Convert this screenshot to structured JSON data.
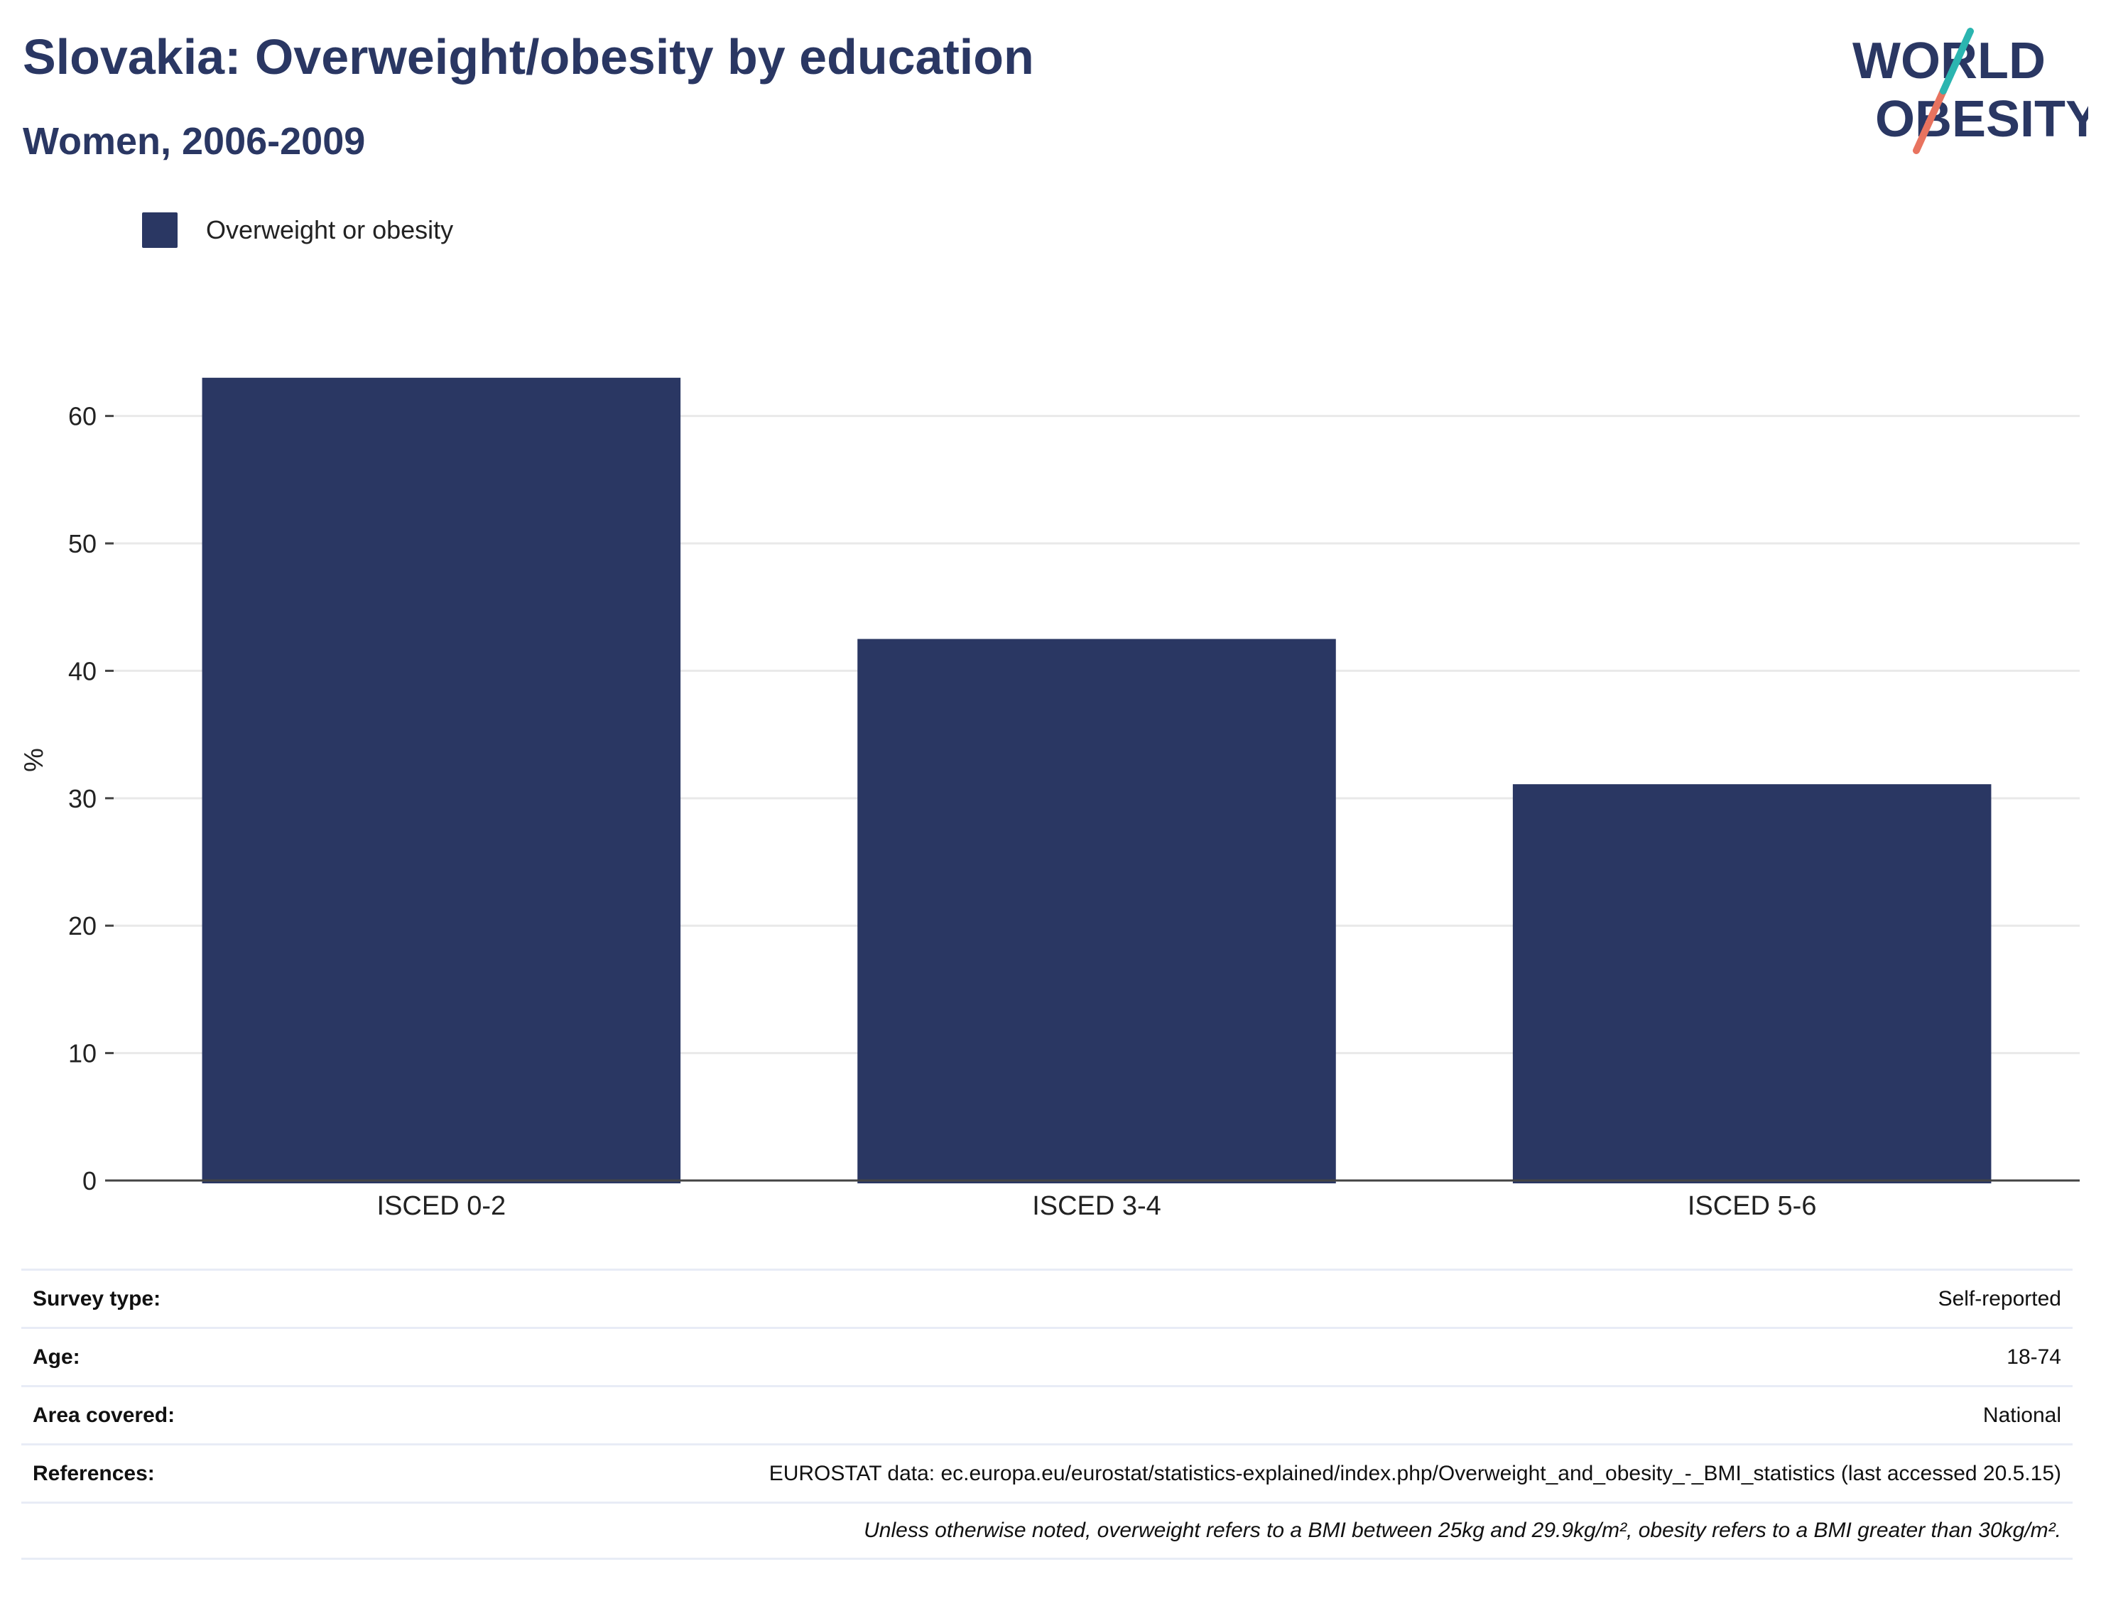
{
  "header": {
    "title": "Slovakia: Overweight/obesity by education",
    "subtitle": "Women, 2006-2009"
  },
  "logo": {
    "line1": "WORLD",
    "line2": "OBESITY",
    "colors": {
      "text": "#2a3763",
      "slash_top": "#2bb5b0",
      "slash_bottom": "#e8735f"
    }
  },
  "legend": {
    "items": [
      {
        "label": "Overweight or obesity",
        "color": "#2a3763"
      }
    ]
  },
  "chart_data": {
    "type": "bar",
    "categories": [
      "ISCED 0-2",
      "ISCED 3-4",
      "ISCED 5-6"
    ],
    "series": [
      {
        "name": "Overweight or obesity",
        "values": [
          63.0,
          42.5,
          31.1
        ],
        "color": "#2a3763"
      }
    ],
    "ylabel": "%",
    "xlabel": "",
    "ylim": [
      0,
      66
    ],
    "yticks": [
      0,
      10,
      20,
      30,
      40,
      50,
      60
    ],
    "grid": true,
    "legend_position": "top-left"
  },
  "info": {
    "rows": [
      {
        "label": "Survey type:",
        "value": "Self-reported"
      },
      {
        "label": "Age:",
        "value": "18-74"
      },
      {
        "label": "Area covered:",
        "value": "National"
      },
      {
        "label": "References:",
        "value": "EUROSTAT data: ec.europa.eu/eurostat/statistics-explained/index.php/Overweight_and_obesity_-_BMI_statistics (last accessed 20.5.15)"
      }
    ],
    "footnote": "Unless otherwise noted, overweight refers to a BMI between 25kg and 29.9kg/m², obesity refers to a BMI greater than 30kg/m²."
  }
}
